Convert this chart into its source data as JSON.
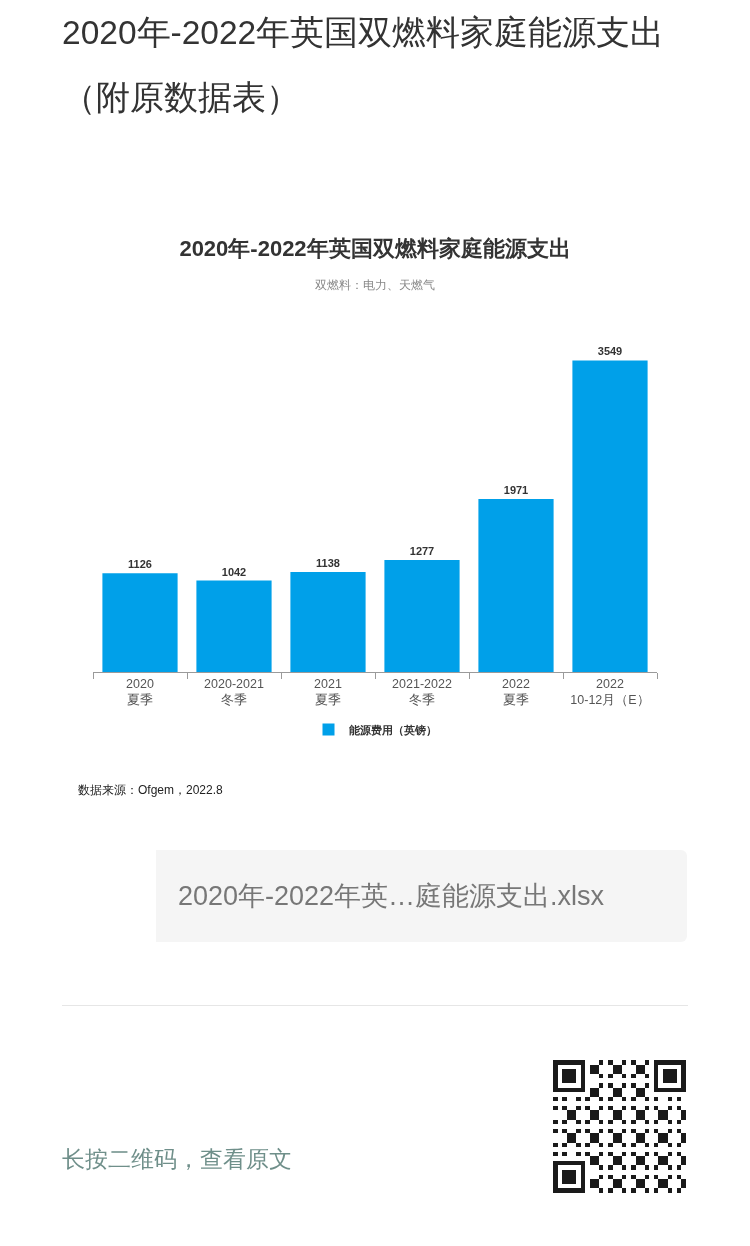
{
  "chart_data": {
    "type": "bar",
    "title": "2020年-2022年英国双燃料家庭能源支出",
    "subtitle": "双燃料：电力、天燃气",
    "categories": [
      "2020\n夏季",
      "2020-2021\n冬季",
      "2021\n夏季",
      "2021-2022\n冬季",
      "2022\n夏季",
      "2022\n10-12月（E）"
    ],
    "series": [
      {
        "name": "能源费用（英镑）",
        "color": "#00a0e9",
        "values": [
          1126,
          1042,
          1138,
          1277,
          1971,
          3549
        ]
      }
    ],
    "data_labels": true,
    "legend": "bottom",
    "tick_labels": "x",
    "annotations": [
      "2020年-2022年英国双燃料家庭能源支出（附原数据表）",
      "数据来源：Ofgem，2022.8",
      "2020年-2022年英…庭能源支出.xlsx",
      "长按二维码，查看原文"
    ]
  }
}
